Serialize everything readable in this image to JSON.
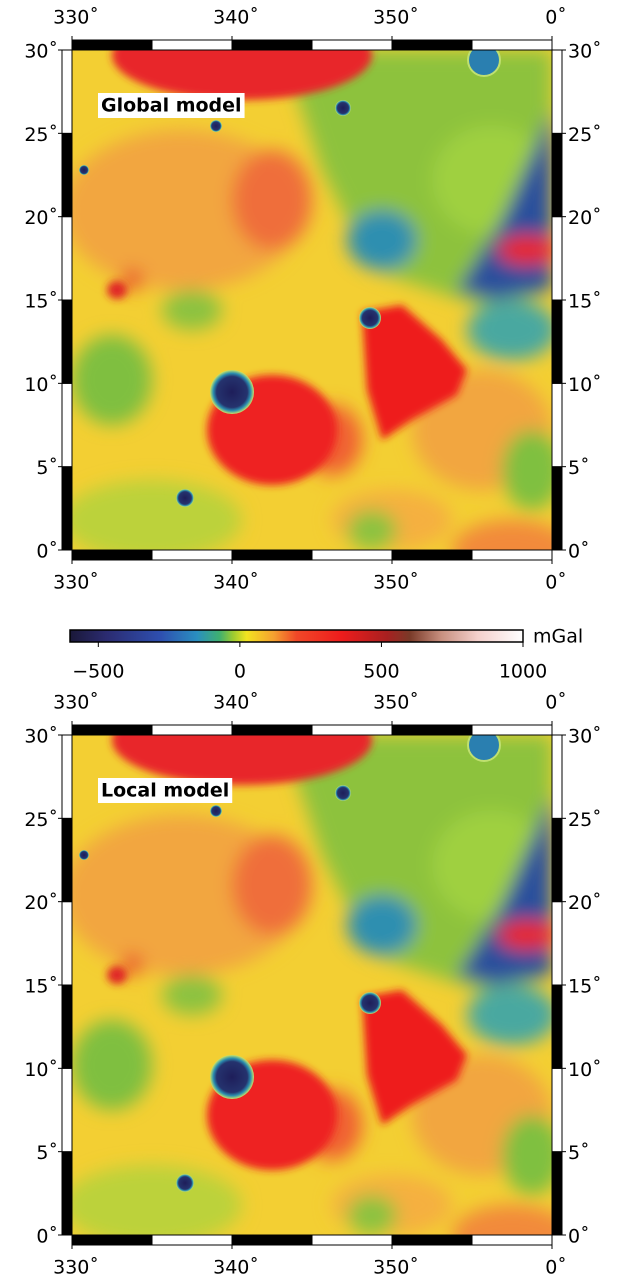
{
  "axes": {
    "lon_range": [
      330,
      360
    ],
    "lat_range": [
      0,
      30
    ],
    "lon_ticks": [
      {
        "value": 330,
        "label": "330˚"
      },
      {
        "value": 340,
        "label": "340˚"
      },
      {
        "value": 350,
        "label": "350˚"
      },
      {
        "value": 360,
        "label": "0˚"
      }
    ],
    "lat_ticks": [
      {
        "value": 0,
        "label": "0˚"
      },
      {
        "value": 5,
        "label": "5˚"
      },
      {
        "value": 10,
        "label": "10˚"
      },
      {
        "value": 15,
        "label": "15˚"
      },
      {
        "value": 20,
        "label": "20˚"
      },
      {
        "value": 25,
        "label": "25˚"
      },
      {
        "value": 30,
        "label": "30˚"
      }
    ]
  },
  "maps": [
    {
      "title": "Global model"
    },
    {
      "title": "Local model"
    }
  ],
  "colorbar": {
    "unit": "mGal",
    "range": [
      -600,
      1000
    ],
    "ticks": [
      {
        "value": -500,
        "label": "−500"
      },
      {
        "value": 0,
        "label": "0"
      },
      {
        "value": 500,
        "label": "500"
      },
      {
        "value": 1000,
        "label": "1000"
      }
    ]
  }
}
